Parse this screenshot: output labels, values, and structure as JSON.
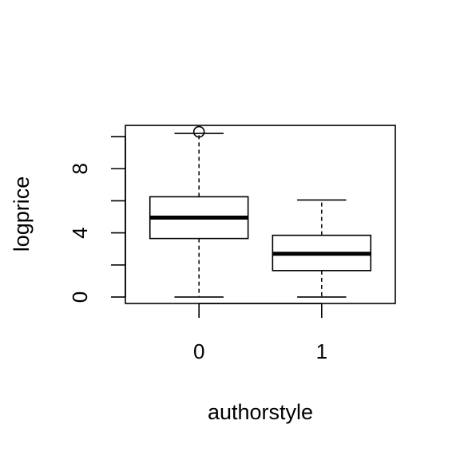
{
  "chart_data": {
    "type": "boxplot",
    "xlabel": "authorstyle",
    "ylabel": "logprice",
    "categories": [
      "0",
      "1"
    ],
    "y_ticks": [
      0,
      2,
      4,
      6,
      8,
      10
    ],
    "y_tick_labels": [
      "0",
      "",
      "4",
      "",
      "8",
      ""
    ],
    "ylim": [
      -0.4,
      10.7
    ],
    "boxes": [
      {
        "category": "0",
        "min": 0.0,
        "q1": 3.65,
        "median": 4.95,
        "q3": 6.25,
        "max": 10.2,
        "outliers": [
          10.3
        ]
      },
      {
        "category": "1",
        "min": 0.0,
        "q1": 1.65,
        "median": 2.7,
        "q3": 3.85,
        "max": 6.05,
        "outliers": []
      }
    ],
    "grid": false,
    "legend": "none"
  }
}
